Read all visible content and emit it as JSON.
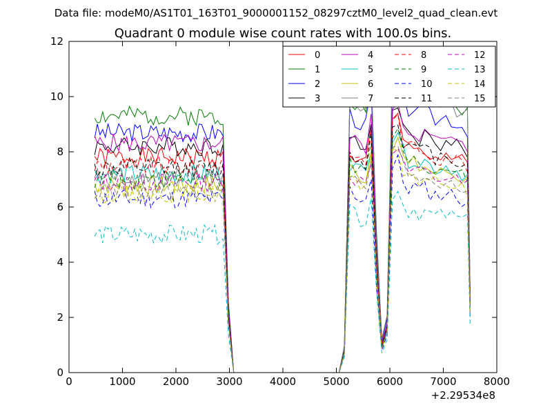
{
  "chart_data": {
    "type": "line",
    "suptitle": "Data file: modeM0/AS1T01_163T01_9000001152_08297cztM0_level2_quad_clean.evt",
    "title": "Quadrant 0 module wise count rates with 100.0s bins.",
    "xlabel": "",
    "ylabel": "",
    "xlim": [
      0,
      8000
    ],
    "ylim": [
      0,
      12
    ],
    "x_offset_label": "+2.29534e8",
    "x_ticks": [
      0,
      1000,
      2000,
      3000,
      4000,
      5000,
      6000,
      7000,
      8000
    ],
    "x_tick_labels": [
      "0",
      "1000",
      "2000",
      "3000",
      "4000",
      "5000",
      "6000",
      "7000",
      "8000"
    ],
    "y_ticks": [
      0,
      2,
      4,
      6,
      8,
      10,
      12
    ],
    "y_tick_labels": [
      "0",
      "2",
      "4",
      "6",
      "8",
      "10",
      "12"
    ],
    "grid": false,
    "legend_position": "top-right",
    "legend_columns": 4,
    "segments": {
      "seg1_x_start": 480,
      "seg1_x_end": 2880,
      "drop_x": [
        2980,
        3080
      ],
      "gap_x": [
        3080,
        5050
      ],
      "seg2_x": [
        5050,
        5150,
        5250,
        5350,
        5450,
        5550,
        5650,
        5750,
        5850,
        5950,
        6050,
        6150,
        6250,
        6350,
        6450,
        6550,
        6650,
        6750,
        6850,
        6950,
        7050,
        7150,
        7250,
        7350,
        7450,
        7500
      ],
      "shape2": [
        0,
        0.08,
        0.82,
        0.8,
        0.79,
        0.78,
        0.89,
        0.41,
        0.1,
        0.17,
        0.92,
        0.95,
        0.86,
        0.83,
        0.84,
        0.82,
        0.83,
        0.81,
        0.8,
        0.8,
        0.81,
        0.8,
        0.79,
        0.78,
        0.77,
        0.25
      ]
    },
    "series": [
      {
        "name": "0",
        "color": "#ff0000",
        "dash": "solid",
        "level1": 7.8,
        "level2": 8.0
      },
      {
        "name": "1",
        "color": "#008000",
        "dash": "solid",
        "level1": 9.3,
        "level2": 10.0
      },
      {
        "name": "2",
        "color": "#0000ff",
        "dash": "solid",
        "level1": 8.7,
        "level2": 9.4
      },
      {
        "name": "3",
        "color": "#000000",
        "dash": "solid",
        "level1": 8.2,
        "level2": 8.5
      },
      {
        "name": "4",
        "color": "#bf00bf",
        "dash": "solid",
        "level1": 8.3,
        "level2": 8.6
      },
      {
        "name": "5",
        "color": "#00bfbf",
        "dash": "solid",
        "level1": 7.2,
        "level2": 7.6
      },
      {
        "name": "6",
        "color": "#bfbf00",
        "dash": "solid",
        "level1": 6.8,
        "level2": 7.4
      },
      {
        "name": "7",
        "color": "#7f7f7f",
        "dash": "solid",
        "level1": 7.1,
        "level2": 9.9
      },
      {
        "name": "8",
        "color": "#ff0000",
        "dash": "dashed",
        "level1": 7.5,
        "level2": 8.0
      },
      {
        "name": "9",
        "color": "#008000",
        "dash": "dashed",
        "level1": 7.0,
        "level2": 7.5
      },
      {
        "name": "10",
        "color": "#0000ff",
        "dash": "dashed",
        "level1": 6.3,
        "level2": 6.6
      },
      {
        "name": "11",
        "color": "#000000",
        "dash": "dashed",
        "level1": 7.4,
        "level2": 8.0
      },
      {
        "name": "12",
        "color": "#bf00bf",
        "dash": "dashed",
        "level1": 6.9,
        "level2": 7.2
      },
      {
        "name": "13",
        "color": "#00bfbf",
        "dash": "dashed",
        "level1": 5.0,
        "level2": 5.8
      },
      {
        "name": "14",
        "color": "#bfbf00",
        "dash": "dashed",
        "level1": 6.5,
        "level2": 7.0
      },
      {
        "name": "15",
        "color": "#7f7f7f",
        "dash": "dashed",
        "level1": 6.6,
        "level2": 7.1
      }
    ]
  }
}
